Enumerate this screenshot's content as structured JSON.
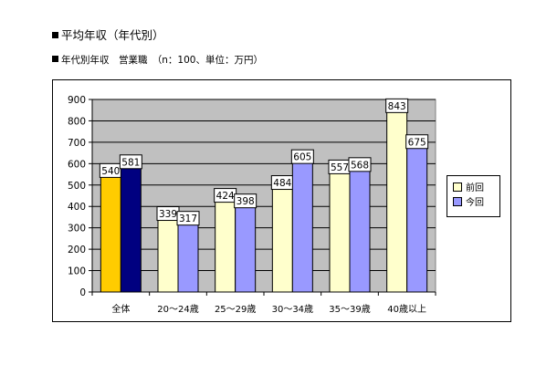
{
  "header": {
    "title": "平均年収（年代別）",
    "subtitle": "年代別年収　営業職　（n：100、単位：万円）"
  },
  "colors": {
    "plot_bg": "#c0c0c0",
    "series": [
      "#ffffcc",
      "#9999ff"
    ],
    "highlight": [
      "#ffcc00",
      "#000080"
    ]
  },
  "chart_data": {
    "type": "bar",
    "title": "",
    "xlabel": "",
    "ylabel": "",
    "categories": [
      "全体",
      "20～24歳",
      "25～29歳",
      "30～34歳",
      "35～39歳",
      "40歳以上"
    ],
    "series": [
      {
        "name": "前回",
        "values": [
          540,
          339,
          424,
          484,
          557,
          843
        ]
      },
      {
        "name": "今回",
        "values": [
          581,
          317,
          398,
          605,
          568,
          675
        ]
      }
    ],
    "highlight_category": "全体",
    "ylim": [
      0,
      900
    ],
    "yticks": [
      0,
      100,
      200,
      300,
      400,
      500,
      600,
      700,
      800,
      900
    ],
    "grid": true,
    "legend_position": "right"
  }
}
